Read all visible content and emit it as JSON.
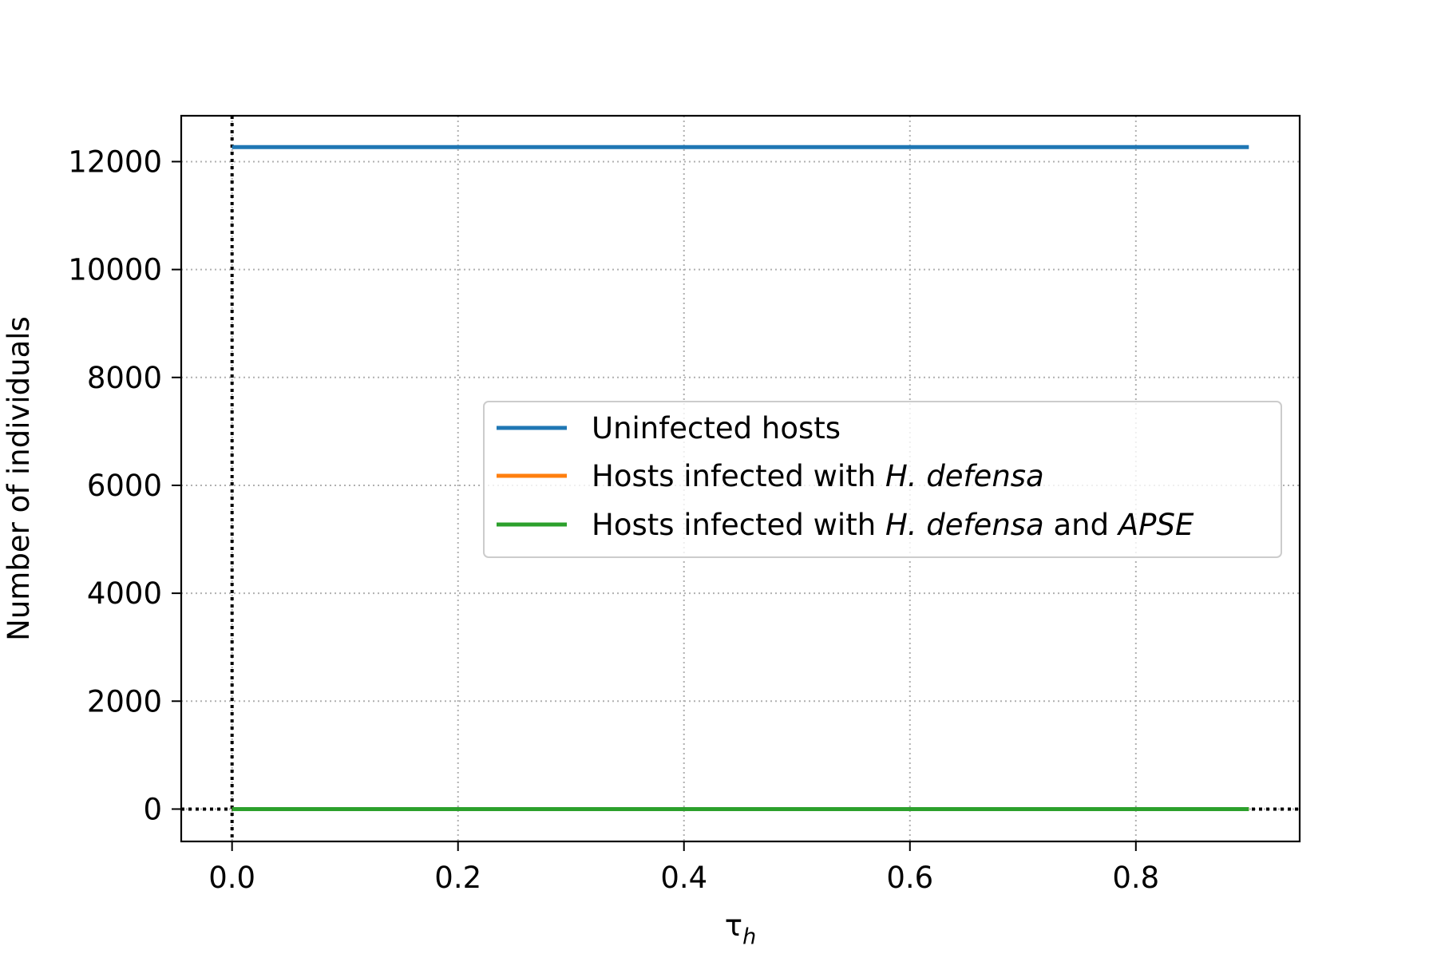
{
  "chart_data": {
    "type": "line",
    "title": "",
    "xlabel": "τ",
    "xlabel_sub": "h",
    "ylabel": "Number of individuals",
    "xlim": [
      -0.045,
      0.945
    ],
    "ylim": [
      -600,
      12850
    ],
    "x_ticks": [
      0.0,
      0.2,
      0.4,
      0.6,
      0.8
    ],
    "x_tick_labels": [
      "0.0",
      "0.2",
      "0.4",
      "0.6",
      "0.8"
    ],
    "y_ticks": [
      0,
      2000,
      4000,
      6000,
      8000,
      10000,
      12000
    ],
    "y_tick_labels": [
      "0",
      "2000",
      "4000",
      "6000",
      "8000",
      "10000",
      "12000"
    ],
    "grid": true,
    "reference_lines": {
      "vertical_x": 0,
      "horizontal_y": 0
    },
    "legend_position": "center-right",
    "series": [
      {
        "name": "Uninfected hosts",
        "color": "#1f77b4",
        "x": [
          0.0,
          0.9
        ],
        "y": [
          12270,
          12270
        ]
      },
      {
        "name": "Hosts infected with H. defensa",
        "color": "#ff7f0e",
        "x": [
          0.0,
          0.9
        ],
        "y": [
          0,
          0
        ]
      },
      {
        "name": "Hosts infected with H. defensa and APSE",
        "color": "#2ca02c",
        "x": [
          0.0,
          0.9
        ],
        "y": [
          0,
          0
        ]
      }
    ],
    "legend": {
      "items": [
        {
          "color": "#1f77b4",
          "parts": [
            {
              "text": "Uninfected hosts",
              "italic": false
            }
          ]
        },
        {
          "color": "#ff7f0e",
          "parts": [
            {
              "text": "Hosts infected with ",
              "italic": false
            },
            {
              "text": "H. defensa",
              "italic": true
            }
          ]
        },
        {
          "color": "#2ca02c",
          "parts": [
            {
              "text": "Hosts infected with ",
              "italic": false
            },
            {
              "text": "H. defensa",
              "italic": true
            },
            {
              "text": " and ",
              "italic": false
            },
            {
              "text": "APSE",
              "italic": true
            }
          ]
        }
      ]
    }
  }
}
